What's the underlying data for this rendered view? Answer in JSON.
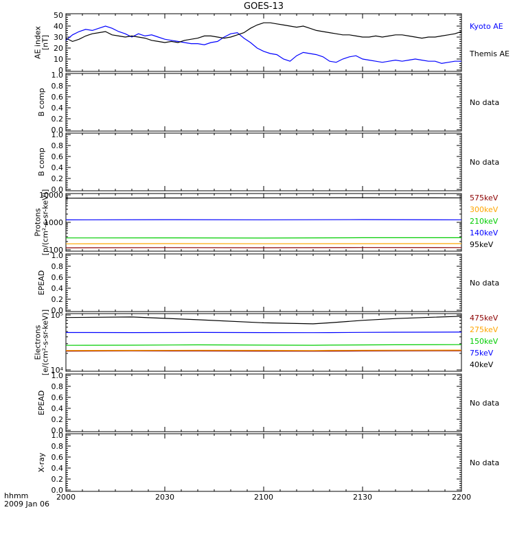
{
  "title": "GOES-13",
  "footer": {
    "time_label": "hhmm",
    "date_label": "2009 Jan 06"
  },
  "x_ticks": [
    "2000",
    "2030",
    "2100",
    "2130",
    "2200"
  ],
  "no_data_text": "No data",
  "chart_data": [
    {
      "type": "line",
      "ylabel": [
        "AE index",
        "[nT]"
      ],
      "ylim": [
        0,
        50
      ],
      "y_ticks": [
        "0",
        "10",
        "20",
        "30",
        "40",
        "50"
      ],
      "series": [
        {
          "name": "Kyoto AE",
          "color": "#0000ff",
          "x": [
            0,
            2,
            4,
            6,
            8,
            10,
            12,
            14,
            16,
            18,
            20,
            22,
            24,
            26,
            28,
            30,
            32,
            34,
            36,
            38,
            40,
            42,
            44,
            46,
            48,
            50,
            52,
            54,
            56,
            58,
            60,
            62,
            64,
            66,
            68,
            70,
            72,
            74,
            76,
            78,
            80,
            82,
            84,
            86,
            88,
            90,
            92,
            94,
            96,
            98,
            100,
            102,
            104,
            106,
            108,
            110,
            112,
            114,
            116,
            118,
            120
          ],
          "values": [
            27,
            32,
            35,
            37,
            36,
            38,
            40,
            38,
            35,
            33,
            30,
            33,
            31,
            32,
            30,
            28,
            27,
            26,
            25,
            24,
            24,
            23,
            25,
            26,
            30,
            33,
            34,
            29,
            25,
            20,
            17,
            15,
            14,
            10,
            8,
            13,
            16,
            15,
            14,
            12,
            8,
            7,
            10,
            12,
            13,
            10,
            9,
            8,
            7,
            8,
            9,
            8,
            9,
            10,
            9,
            8,
            8,
            6,
            7,
            8,
            8
          ]
        },
        {
          "name": "Themis AE",
          "color": "#000000",
          "x": [
            0,
            2,
            4,
            6,
            8,
            10,
            12,
            14,
            16,
            18,
            20,
            22,
            24,
            26,
            28,
            30,
            32,
            34,
            36,
            38,
            40,
            42,
            44,
            46,
            48,
            50,
            52,
            54,
            56,
            58,
            60,
            62,
            64,
            66,
            68,
            70,
            72,
            74,
            76,
            78,
            80,
            82,
            84,
            86,
            88,
            90,
            92,
            94,
            96,
            98,
            100,
            102,
            104,
            106,
            108,
            110,
            112,
            114,
            116,
            118,
            120
          ],
          "values": [
            29,
            26,
            28,
            31,
            33,
            34,
            35,
            32,
            31,
            30,
            31,
            30,
            29,
            27,
            26,
            25,
            26,
            25,
            27,
            28,
            29,
            31,
            31,
            30,
            29,
            30,
            32,
            34,
            38,
            41,
            43,
            43,
            42,
            41,
            40,
            39,
            40,
            38,
            36,
            35,
            34,
            33,
            32,
            32,
            31,
            30,
            30,
            31,
            30,
            31,
            32,
            32,
            31,
            30,
            29,
            30,
            30,
            31,
            32,
            33,
            35
          ]
        }
      ],
      "legend": [
        {
          "text": "Kyoto AE",
          "color": "#0000ff"
        },
        {
          "text": "Themis AE",
          "color": "#000000"
        }
      ]
    },
    {
      "type": "line",
      "ylabel": [
        "B comp"
      ],
      "ylim": [
        0,
        1
      ],
      "y_ticks": [
        "0.0",
        "0.2",
        "0.4",
        "0.6",
        "0.8",
        "1.0"
      ],
      "no_data": true
    },
    {
      "type": "line",
      "ylabel": [
        "B comp"
      ],
      "ylim": [
        0,
        1
      ],
      "y_ticks": [
        "0.0",
        "0.2",
        "0.4",
        "0.6",
        "0.8",
        "1.0"
      ],
      "no_data": true
    },
    {
      "type": "line",
      "ylabel": [
        "Protons",
        "[p/(cm²-s-sr-keV)]"
      ],
      "scale": "log",
      "ylim": [
        100,
        10000
      ],
      "y_ticks": [
        "100",
        "1000",
        "10000"
      ],
      "series": [
        {
          "name": "575keV",
          "color": "#8b0000",
          "x": [
            0,
            30,
            60,
            90,
            120
          ],
          "values": [
            118,
            120,
            119,
            121,
            120
          ]
        },
        {
          "name": "300keV",
          "color": "#ffa500",
          "x": [
            0,
            30,
            60,
            90,
            120
          ],
          "values": [
            165,
            168,
            166,
            167,
            168
          ]
        },
        {
          "name": "210keV",
          "color": "#00cc00",
          "x": [
            0,
            30,
            60,
            90,
            120
          ],
          "values": [
            270,
            272,
            268,
            275,
            276
          ]
        },
        {
          "name": "140keV",
          "color": "#0000ff",
          "x": [
            0,
            30,
            60,
            90,
            120
          ],
          "values": [
            1230,
            1250,
            1240,
            1260,
            1240
          ]
        },
        {
          "name": "95keV",
          "color": "#000000",
          "x": [
            0,
            30,
            60,
            90,
            120
          ],
          "values": [
            7600,
            7700,
            7800,
            7900,
            7800
          ]
        }
      ],
      "legend": [
        {
          "text": "575keV",
          "color": "#8b0000"
        },
        {
          "text": "300keV",
          "color": "#ffa500"
        },
        {
          "text": "210keV",
          "color": "#00cc00"
        },
        {
          "text": "140keV",
          "color": "#0000ff"
        },
        {
          "text": "95keV",
          "color": "#000000"
        }
      ]
    },
    {
      "type": "line",
      "ylabel": [
        "EPEAD"
      ],
      "ylim": [
        0,
        1
      ],
      "y_ticks": [
        "0.0",
        "0.2",
        "0.4",
        "0.6",
        "0.8",
        "1.0"
      ],
      "no_data": true
    },
    {
      "type": "line",
      "ylabel": [
        "Electrons",
        "[e/(cm²-s-sr-keV)]"
      ],
      "scale": "log",
      "ylim": [
        10000,
        100000
      ],
      "y_ticks": [
        "10⁴",
        "10⁵"
      ],
      "series": [
        {
          "name": "475keV",
          "color": "#8b0000",
          "x": [
            0,
            20,
            40,
            60,
            75,
            80,
            90,
            100,
            120
          ],
          "values": [
            22000,
            22200,
            22100,
            22000,
            21900,
            22000,
            22100,
            22200,
            22300
          ]
        },
        {
          "name": "275keV",
          "color": "#ffa500",
          "x": [
            0,
            20,
            40,
            60,
            75,
            80,
            90,
            100,
            120
          ],
          "values": [
            22600,
            22700,
            22800,
            22700,
            22600,
            22700,
            22800,
            22900,
            23000
          ]
        },
        {
          "name": "150keV",
          "color": "#00cc00",
          "x": [
            0,
            20,
            40,
            60,
            75,
            80,
            90,
            100,
            120
          ],
          "values": [
            28000,
            28200,
            28600,
            28300,
            28100,
            28300,
            28500,
            28700,
            28800
          ]
        },
        {
          "name": "75keV",
          "color": "#0000ff",
          "x": [
            0,
            20,
            40,
            60,
            75,
            80,
            90,
            100,
            120
          ],
          "values": [
            48000,
            47800,
            48200,
            47900,
            47700,
            47900,
            48300,
            48600,
            48800
          ]
        },
        {
          "name": "40keV",
          "color": "#000000",
          "x": [
            0,
            20,
            40,
            60,
            75,
            80,
            90,
            100,
            120
          ],
          "values": [
            90000,
            92000,
            82000,
            72000,
            69000,
            72000,
            80000,
            86000,
            95000
          ]
        }
      ],
      "legend": [
        {
          "text": "475keV",
          "color": "#8b0000"
        },
        {
          "text": "275keV",
          "color": "#ffa500"
        },
        {
          "text": "150keV",
          "color": "#00cc00"
        },
        {
          "text": "75keV",
          "color": "#0000ff"
        },
        {
          "text": "40keV",
          "color": "#000000"
        }
      ]
    },
    {
      "type": "line",
      "ylabel": [
        "EPEAD"
      ],
      "ylim": [
        0,
        1
      ],
      "y_ticks": [
        "0.0",
        "0.2",
        "0.4",
        "0.6",
        "0.8",
        "1.0"
      ],
      "no_data": true
    },
    {
      "type": "line",
      "ylabel": [
        "X-ray"
      ],
      "ylim": [
        0,
        1
      ],
      "y_ticks": [
        "0.0",
        "0.2",
        "0.4",
        "0.6",
        "0.8",
        "1.0"
      ],
      "no_data": true
    }
  ]
}
